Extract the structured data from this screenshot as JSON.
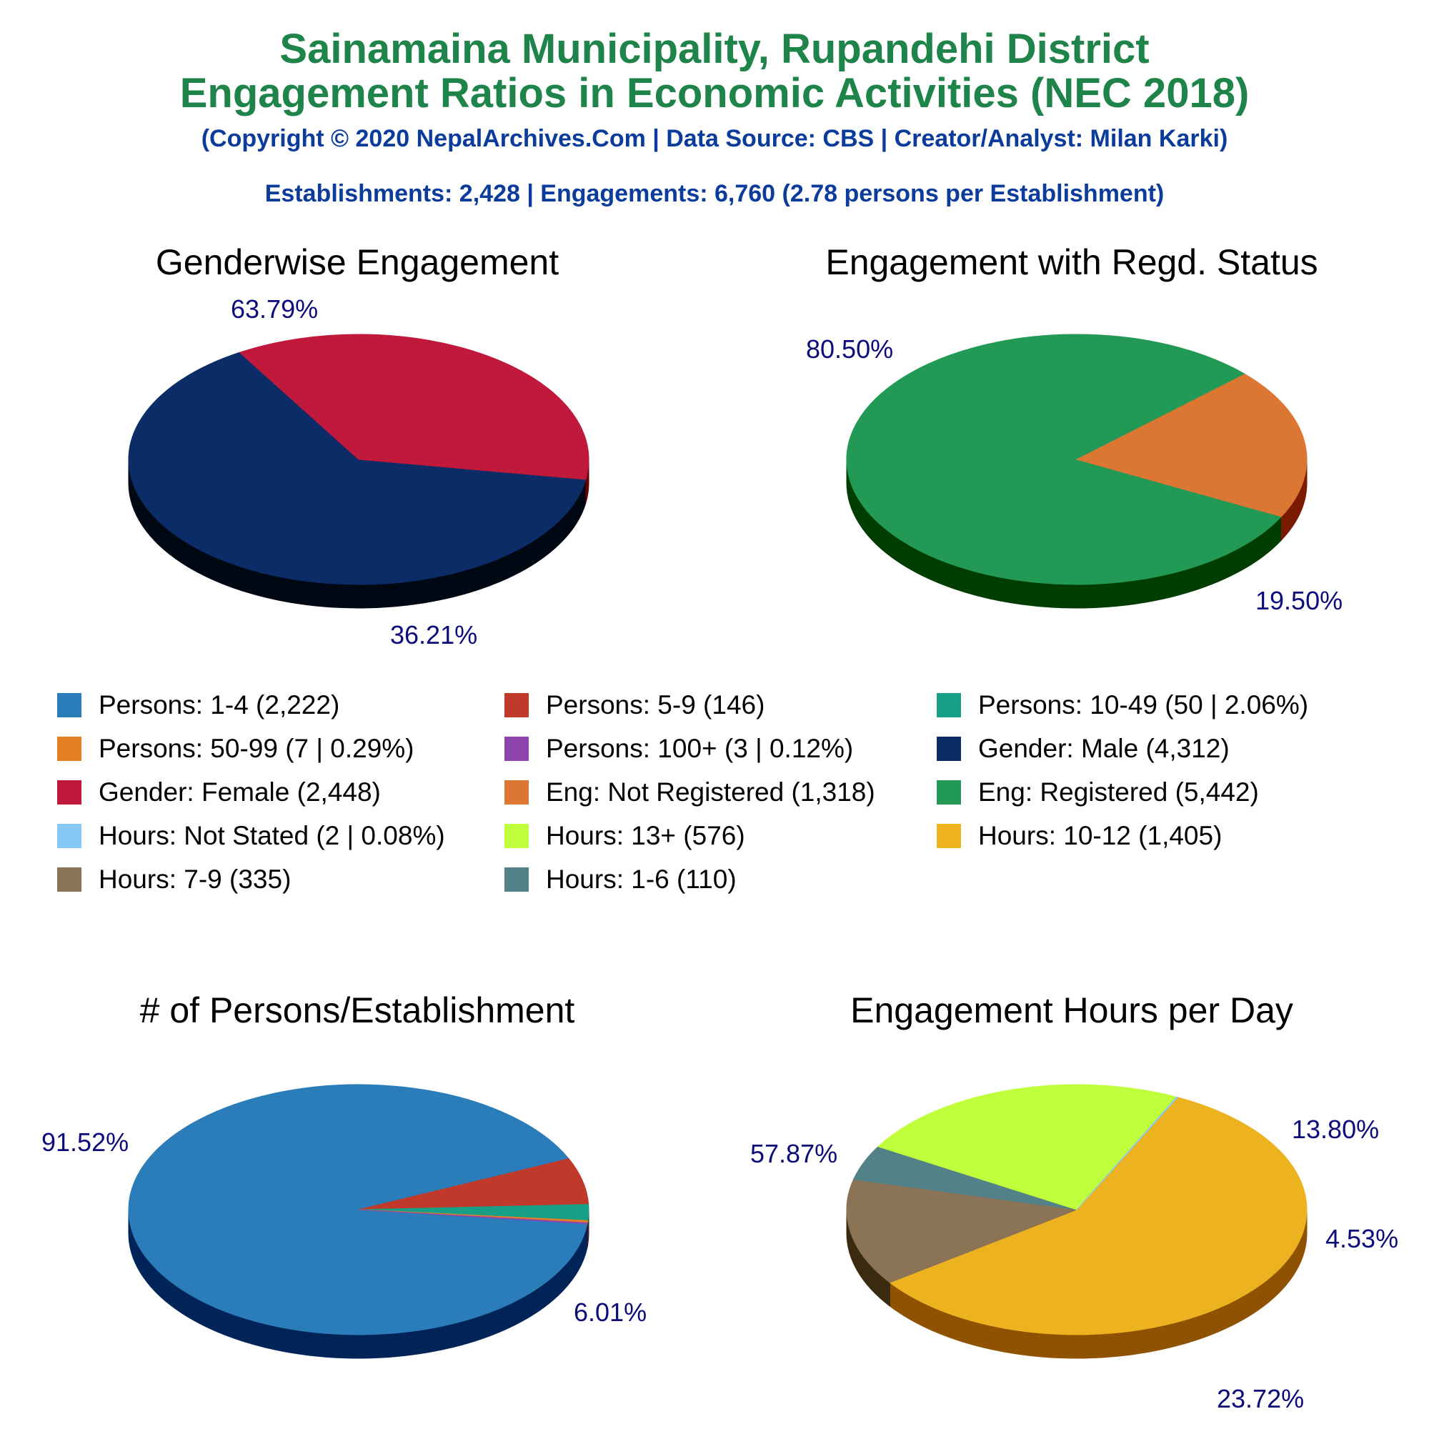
{
  "header": {
    "title_line1": "Sainamaina Municipality, Rupandehi District",
    "title_line2": "Engagement Ratios in Economic Activities (NEC 2018)",
    "copyright": "(Copyright © 2020 NepalArchives.Com | Data Source: CBS | Creator/Analyst: Milan Karki)",
    "summary": "Establishments: 2,428 | Engagements: 6,760 (2.78 persons per Establishment)"
  },
  "legend": [
    {
      "label": "Persons: 1-4 (2,222)",
      "color": "#2a7db8"
    },
    {
      "label": "Persons: 5-9 (146)",
      "color": "#c0392b"
    },
    {
      "label": "Persons: 10-49 (50 | 2.06%)",
      "color": "#17a085"
    },
    {
      "label": "Persons: 50-99 (7 | 0.29%)",
      "color": "#e67e22"
    },
    {
      "label": "Persons: 100+ (3 | 0.12%)",
      "color": "#8e44ad"
    },
    {
      "label": "Gender: Male (4,312)",
      "color": "#0b2c66"
    },
    {
      "label": "Gender: Female (2,448)",
      "color": "#c0193b"
    },
    {
      "label": "Eng: Not Registered (1,318)",
      "color": "#dc7633"
    },
    {
      "label": "Eng: Registered (5,442)",
      "color": "#229954"
    },
    {
      "label": "Hours: Not Stated (2 | 0.08%)",
      "color": "#85c8f5"
    },
    {
      "label": "Hours: 13+ (576)",
      "color": "#c0ff3c"
    },
    {
      "label": "Hours: 10-12 (1,405)",
      "color": "#edb21f"
    },
    {
      "label": "Hours: 7-9 (335)",
      "color": "#8b7355"
    },
    {
      "label": "Hours: 1-6 (110)",
      "color": "#528187"
    }
  ],
  "chart_data": [
    {
      "type": "pie",
      "title": "Genderwise Engagement",
      "slices": [
        {
          "name": "Gender: Male",
          "value": 4312,
          "label": "63.79%",
          "color": "#0b2c66",
          "side": "#000814"
        },
        {
          "name": "Gender: Female",
          "value": 2448,
          "label": "36.21%",
          "color": "#c0193b",
          "side": "#660000"
        }
      ]
    },
    {
      "type": "pie",
      "title": "Engagement with Regd. Status",
      "slices": [
        {
          "name": "Eng: Registered",
          "value": 5442,
          "label": "80.50%",
          "color": "#229954",
          "side": "#003d00"
        },
        {
          "name": "Eng: Not Registered",
          "value": 1318,
          "label": "19.50%",
          "color": "#dc7633",
          "side": "#7a1a00"
        }
      ]
    },
    {
      "type": "pie",
      "title": "# of Persons/Establishment",
      "slices": [
        {
          "name": "Persons: 1-4",
          "value": 2222,
          "label": "91.52%",
          "color": "#2a7db8",
          "side": "#002458"
        },
        {
          "name": "Persons: 5-9",
          "value": 146,
          "label": "6.01%",
          "color": "#c0392b",
          "side": "#5c0000"
        },
        {
          "name": "Persons: 10-49",
          "value": 50,
          "label": "",
          "color": "#17a085",
          "side": "#004030"
        },
        {
          "name": "Persons: 50-99",
          "value": 7,
          "label": "",
          "color": "#e67e22",
          "side": "#7a3000"
        },
        {
          "name": "Persons: 100+",
          "value": 3,
          "label": "",
          "color": "#8e44ad",
          "side": "#3a0050"
        }
      ]
    },
    {
      "type": "pie",
      "title": "Engagement Hours per Day",
      "slices": [
        {
          "name": "Hours: 10-12",
          "value": 1405,
          "label": "57.87%",
          "color": "#edb21f",
          "side": "#8f5200"
        },
        {
          "name": "Hours: 7-9",
          "value": 335,
          "label": "13.80%",
          "color": "#8b7355",
          "side": "#3a2a10"
        },
        {
          "name": "Hours: 1-6",
          "value": 110,
          "label": "4.53%",
          "color": "#528187",
          "side": "#1a3a40"
        },
        {
          "name": "Hours: 13+",
          "value": 576,
          "label": "23.72%",
          "color": "#c0ff3c",
          "side": "#5fa000"
        },
        {
          "name": "Hours: Not Stated",
          "value": 2,
          "label": "",
          "color": "#85c8f5",
          "side": "#3a6a8a"
        }
      ]
    }
  ]
}
